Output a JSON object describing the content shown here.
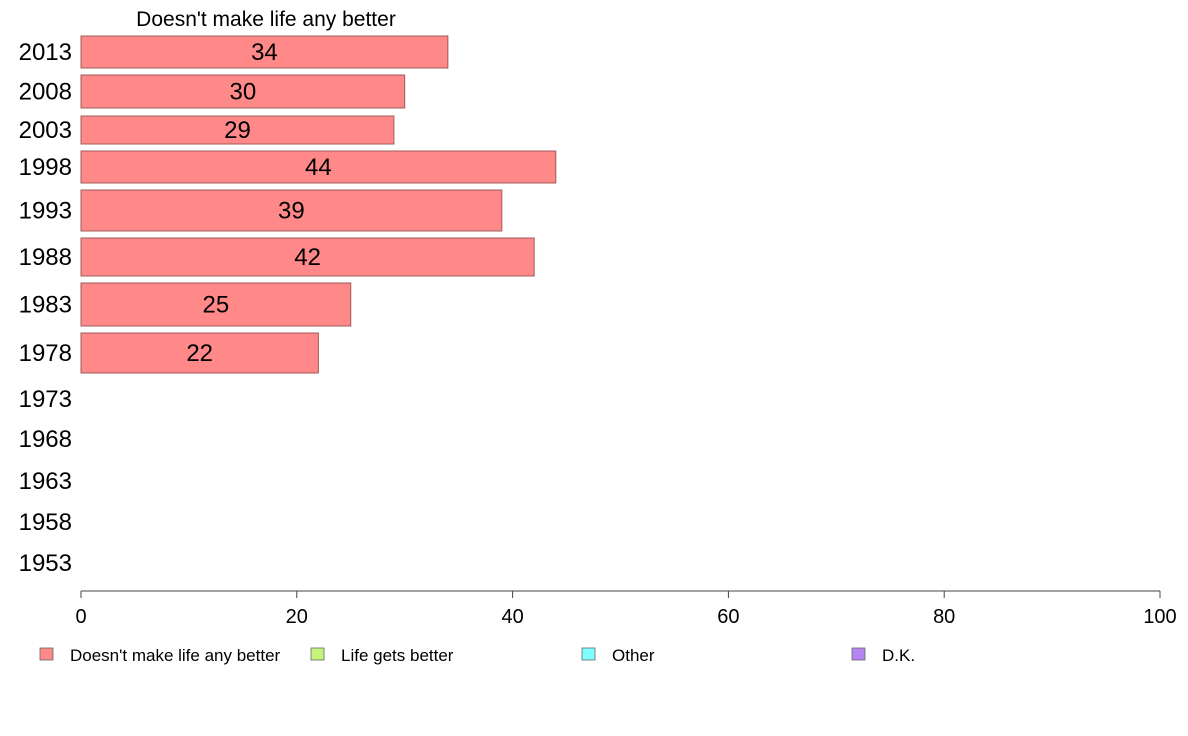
{
  "chart_data": {
    "type": "bar",
    "orientation": "horizontal",
    "title": "Doesn't make life any better",
    "categories": [
      "2013",
      "2008",
      "2003",
      "1998",
      "1993",
      "1988",
      "1983",
      "1978",
      "1973",
      "1968",
      "1963",
      "1958",
      "1953"
    ],
    "series": [
      {
        "name": "Doesn't make life any better",
        "values": [
          34,
          30,
          29,
          44,
          39,
          42,
          25,
          22,
          null,
          null,
          null,
          null,
          null
        ],
        "color": "#ff8888"
      }
    ],
    "xlim": [
      0,
      100
    ],
    "xticks": [
      "0",
      "20",
      "40",
      "60",
      "80",
      "100"
    ],
    "data_labels": [
      "34",
      "30",
      "29",
      "44",
      "39",
      "42",
      "25",
      "22"
    ],
    "legend_position": "bottom",
    "grid": false
  },
  "legend": [
    {
      "label": "Doesn't make life any better",
      "color": "#ff8888"
    },
    {
      "label": "Life gets better",
      "color": "#c6f47a"
    },
    {
      "label": "Other",
      "color": "#80ffff"
    },
    {
      "label": "D.K.",
      "color": "#b784f4"
    }
  ]
}
